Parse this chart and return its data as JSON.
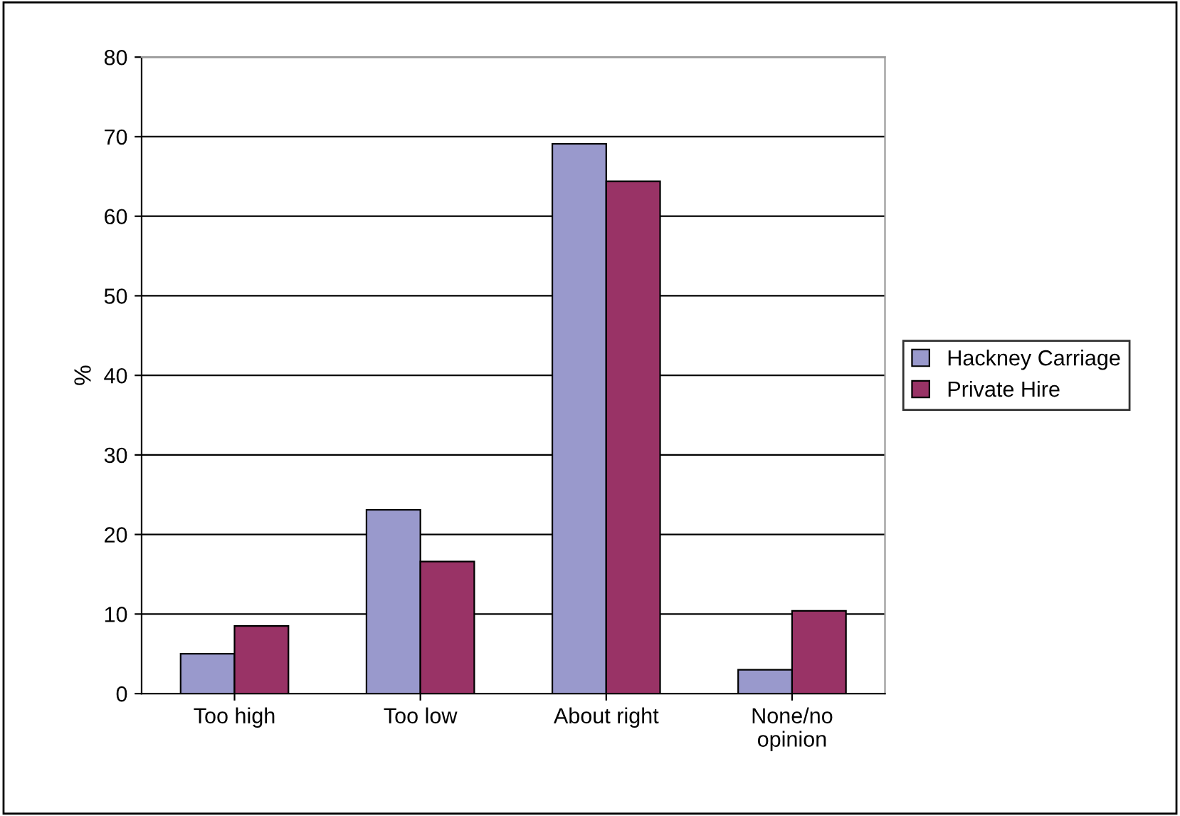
{
  "chart_data": {
    "type": "bar",
    "ylabel": "%",
    "categories": [
      "Too high",
      "Too low",
      "About right",
      "None/no\nopinion"
    ],
    "series": [
      {
        "name": "Hackney Carriage",
        "color": "#9999cc",
        "values": [
          5.0,
          23.1,
          69.1,
          3.0
        ]
      },
      {
        "name": "Private Hire",
        "color": "#993366",
        "values": [
          8.5,
          16.6,
          64.4,
          10.4
        ]
      }
    ],
    "ylim": [
      0,
      80
    ],
    "yticks": [
      0,
      10,
      20,
      30,
      40,
      50,
      60,
      70,
      80
    ],
    "grid": "y",
    "legend": "right"
  }
}
